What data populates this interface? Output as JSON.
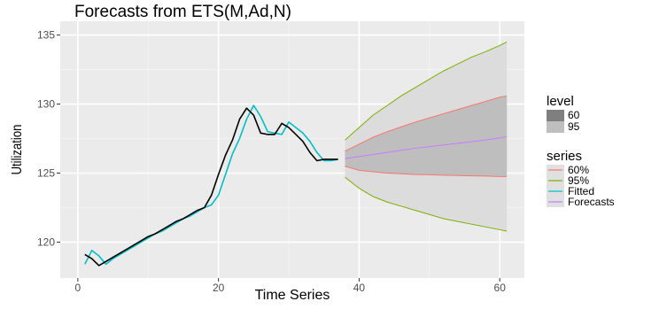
{
  "chart_data": {
    "type": "line",
    "title": "Forecasts from ETS(M,Ad,N)",
    "xlabel": "Time Series",
    "ylabel": "Utilization",
    "xlim": [
      -2.5,
      63.5
    ],
    "ylim": [
      117.4,
      136.0
    ],
    "x_ticks": [
      0,
      20,
      40,
      60
    ],
    "y_ticks": [
      120,
      125,
      130,
      135
    ],
    "x_tick_labels": [
      "0",
      "20",
      "40",
      "60"
    ],
    "y_tick_labels": [
      "120",
      "125",
      "130",
      "135"
    ],
    "x_minor_ticks": [
      10,
      30,
      50
    ],
    "y_minor_ticks": [
      122.5,
      127.5,
      132.5
    ],
    "grid": true,
    "background_color": "#ebebeb",
    "observed": {
      "color": "#000000",
      "x": [
        1,
        2,
        3,
        4,
        5,
        6,
        7,
        8,
        9,
        10,
        11,
        12,
        13,
        14,
        15,
        16,
        17,
        18,
        19,
        20,
        21,
        22,
        23,
        24,
        25,
        26,
        27,
        28,
        29,
        30,
        31,
        32,
        33,
        34,
        35,
        36,
        37
      ],
      "y": [
        119.1,
        118.8,
        118.3,
        118.6,
        118.9,
        119.2,
        119.5,
        119.8,
        120.1,
        120.4,
        120.6,
        120.9,
        121.2,
        121.5,
        121.7,
        122.0,
        122.3,
        122.5,
        123.4,
        124.9,
        126.3,
        127.4,
        128.9,
        129.7,
        129.2,
        127.9,
        127.8,
        127.8,
        128.6,
        128.3,
        127.8,
        127.3,
        126.5,
        125.9,
        126.0,
        126.0,
        126.0
      ]
    },
    "fitted": {
      "name": "Fitted",
      "color": "#00bfc4",
      "x": [
        1,
        2,
        3,
        4,
        5,
        6,
        7,
        8,
        9,
        10,
        11,
        12,
        13,
        14,
        15,
        16,
        17,
        18,
        19,
        20,
        21,
        22,
        23,
        24,
        25,
        26,
        27,
        28,
        29,
        30,
        31,
        32,
        33,
        34,
        35,
        36,
        37
      ],
      "y": [
        118.4,
        119.4,
        119.0,
        118.4,
        118.8,
        119.1,
        119.4,
        119.7,
        120.0,
        120.3,
        120.6,
        120.8,
        121.1,
        121.4,
        121.7,
        121.9,
        122.2,
        122.5,
        122.7,
        123.4,
        124.9,
        126.4,
        127.5,
        128.9,
        129.9,
        129.1,
        128.0,
        127.9,
        127.8,
        128.7,
        128.3,
        127.9,
        127.3,
        126.5,
        125.9,
        125.9,
        126.0
      ]
    },
    "forecast_x": [
      38,
      40,
      42,
      44,
      46,
      48,
      50,
      52,
      54,
      56,
      58,
      60,
      61
    ],
    "forecasts": {
      "name": "Forecasts",
      "color": "#c77cff",
      "y": [
        126.05,
        126.2,
        126.35,
        126.5,
        126.65,
        126.8,
        126.92,
        127.04,
        127.16,
        127.28,
        127.4,
        127.55,
        127.65
      ]
    },
    "band_60": {
      "level": "60",
      "fill": "#bebebe",
      "line_color": "#f8766d",
      "lower": [
        125.5,
        125.2,
        125.1,
        125.0,
        124.95,
        124.9,
        124.88,
        124.85,
        124.82,
        124.8,
        124.78,
        124.75,
        124.75
      ],
      "upper": [
        126.6,
        127.1,
        127.6,
        128.0,
        128.35,
        128.7,
        129.0,
        129.3,
        129.6,
        129.9,
        130.2,
        130.5,
        130.6
      ]
    },
    "band_95": {
      "level": "95",
      "fill": "#dcdcdc",
      "line_color": "#7cae00",
      "lower": [
        124.7,
        123.9,
        123.3,
        122.9,
        122.6,
        122.3,
        122.0,
        121.7,
        121.5,
        121.3,
        121.1,
        120.9,
        120.8
      ],
      "upper": [
        127.4,
        128.3,
        129.2,
        129.9,
        130.6,
        131.2,
        131.8,
        132.4,
        132.9,
        133.4,
        133.8,
        134.25,
        134.5
      ]
    },
    "legend": {
      "position": "right",
      "level_title": "level",
      "level_items": [
        {
          "label": "60",
          "color": "#7f7f7f"
        },
        {
          "label": "95",
          "color": "#bfbfbf"
        }
      ],
      "series_title": "series",
      "series_items": [
        {
          "label": "60%",
          "color": "#f8766d"
        },
        {
          "label": "95%",
          "color": "#7cae00"
        },
        {
          "label": "Fitted",
          "color": "#00bfc4"
        },
        {
          "label": "Forecasts",
          "color": "#c77cff"
        }
      ]
    }
  }
}
